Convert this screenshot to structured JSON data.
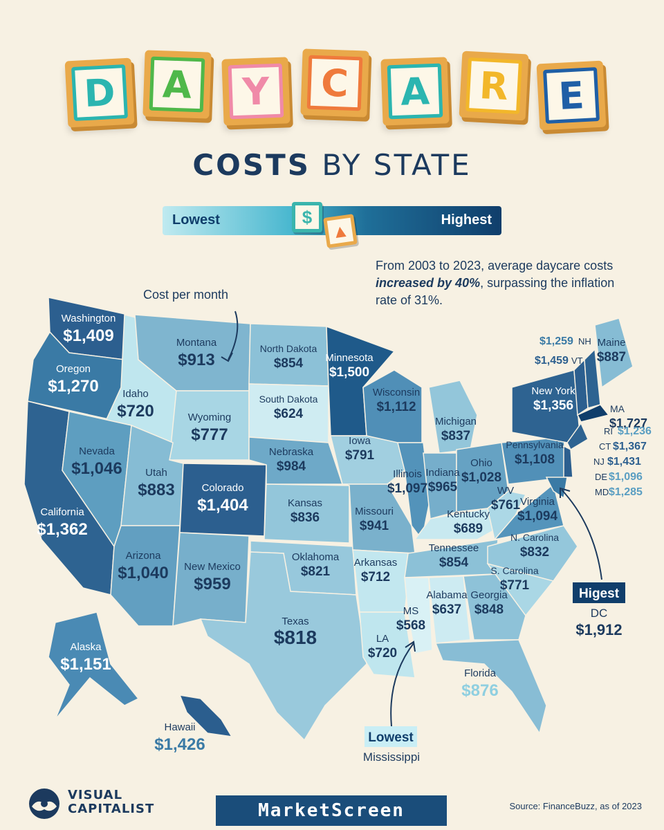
{
  "title": {
    "letters": [
      {
        "char": "D",
        "color": "#2bb5b0",
        "border": "#2bb5b0"
      },
      {
        "char": "A",
        "color": "#4fb84a",
        "border": "#4fb84a"
      },
      {
        "char": "Y",
        "color": "#f08aa8",
        "border": "#f08aa8"
      },
      {
        "char": "C",
        "color": "#ef7a3c",
        "border": "#ef7a3c"
      },
      {
        "char": "A",
        "color": "#2bb5b0",
        "border": "#2bb5b0"
      },
      {
        "char": "R",
        "color": "#f2b72a",
        "border": "#f2b72a"
      },
      {
        "char": "E",
        "color": "#1f5fa6",
        "border": "#1f5fa6"
      }
    ],
    "subtitle_bold": "COSTS",
    "subtitle_rest": " BY STATE"
  },
  "legend": {
    "low_label": "Lowest",
    "high_label": "Highest",
    "low_icon": "dollar-icon",
    "high_icon": "up-arrow-icon"
  },
  "note": {
    "part1": "From 2003 to 2023, average daycare costs ",
    "emphasis": "increased by 40%",
    "part2": ", surpassing the inflation rate of 31%."
  },
  "cost_label": "Cost per month",
  "states": [
    {
      "name": "Washington",
      "value": "$1,409",
      "color": "#2c5f8f"
    },
    {
      "name": "Oregon",
      "value": "$1,270",
      "color": "#3a7aa5"
    },
    {
      "name": "California",
      "value": "$1,362",
      "color": "#2e6391"
    },
    {
      "name": "Idaho",
      "value": "$720",
      "color": "#bfe6ee"
    },
    {
      "name": "Nevada",
      "value": "$1,046",
      "color": "#5e9ec0"
    },
    {
      "name": "Montana",
      "value": "$913",
      "color": "#7fb5cf"
    },
    {
      "name": "Wyoming",
      "value": "$777",
      "color": "#a8d6e4"
    },
    {
      "name": "Utah",
      "value": "$883",
      "color": "#86bcd4"
    },
    {
      "name": "Arizona",
      "value": "$1,040",
      "color": "#629fc1"
    },
    {
      "name": "Colorado",
      "value": "$1,404",
      "color": "#2c5f8f"
    },
    {
      "name": "New Mexico",
      "value": "$959",
      "color": "#77afcb"
    },
    {
      "name": "North Dakota",
      "value": "$854",
      "color": "#8cc1d7"
    },
    {
      "name": "South Dakota",
      "value": "$624",
      "color": "#cfecf2"
    },
    {
      "name": "Nebraska",
      "value": "$984",
      "color": "#6ea9c8"
    },
    {
      "name": "Kansas",
      "value": "$836",
      "color": "#93c6da"
    },
    {
      "name": "Oklahoma",
      "value": "$821",
      "color": "#97c8dc"
    },
    {
      "name": "Texas",
      "value": "$818",
      "color": "#99c9dc"
    },
    {
      "name": "Minnesota",
      "value": "$1,500",
      "color": "#1f5a8a"
    },
    {
      "name": "Iowa",
      "value": "$791",
      "color": "#a1cfe0"
    },
    {
      "name": "Missouri",
      "value": "$941",
      "color": "#7ab1cc"
    },
    {
      "name": "Arkansas",
      "value": "$712",
      "color": "#c2e7ef"
    },
    {
      "name": "LA",
      "value": "$720",
      "color": "#bfe6ee"
    },
    {
      "name": "Wisconsin",
      "value": "$1,112",
      "color": "#508fb7"
    },
    {
      "name": "Illinois",
      "value": "$1,097",
      "color": "#5393ba"
    },
    {
      "name": "Michigan",
      "value": "$837",
      "color": "#93c6da"
    },
    {
      "name": "Indiana",
      "value": "$965",
      "color": "#76aecb"
    },
    {
      "name": "Ohio",
      "value": "$1,028",
      "color": "#66a2c3"
    },
    {
      "name": "Kentucky",
      "value": "$689",
      "color": "#c8e9f0"
    },
    {
      "name": "Tennessee",
      "value": "$854",
      "color": "#8cc1d7"
    },
    {
      "name": "MS",
      "value": "$568",
      "color": "#d9f1f5"
    },
    {
      "name": "Alabama",
      "value": "$637",
      "color": "#cdebf2"
    },
    {
      "name": "Georgia",
      "value": "$848",
      "color": "#8ec2d8"
    },
    {
      "name": "Florida",
      "value": "$876",
      "color": "#88bdd5"
    },
    {
      "name": "S. Carolina",
      "value": "$771",
      "color": "#aad7e5"
    },
    {
      "name": "N. Carolina",
      "value": "$832",
      "color": "#94c7db"
    },
    {
      "name": "Virginia",
      "value": "$1,094",
      "color": "#5494bb"
    },
    {
      "name": "WV",
      "value": "$761",
      "color": "#acd8e6"
    },
    {
      "name": "Pennsylvania",
      "value": "$1,108",
      "color": "#5190b8"
    },
    {
      "name": "New York",
      "value": "$1,356",
      "color": "#2e6391"
    },
    {
      "name": "Maine",
      "value": "$887",
      "color": "#86bcd4"
    },
    {
      "name": "Alaska",
      "value": "$1,151",
      "color": "#4a8ab4"
    },
    {
      "name": "Hawaii",
      "value": "$1,426",
      "color": "#2b5e8e"
    }
  ],
  "northeast": [
    {
      "abbr": "NH",
      "value": "$1,259"
    },
    {
      "abbr": "VT",
      "value": "$1,459"
    },
    {
      "abbr": "MA",
      "value": "$1,727"
    },
    {
      "abbr": "RI",
      "value": "$1,236"
    },
    {
      "abbr": "CT",
      "value": "$1,367"
    },
    {
      "abbr": "NJ",
      "value": "$1,431"
    },
    {
      "abbr": "DE",
      "value": "$1,096"
    },
    {
      "abbr": "MD",
      "value": "$1,285"
    }
  ],
  "highest": {
    "tag": "Higest",
    "place": "DC",
    "value": "$1,912"
  },
  "lowest": {
    "tag": "Lowest",
    "place": "Mississippi"
  },
  "footer": {
    "logo_line1": "VISUAL",
    "logo_line2": "CAPITALIST",
    "brand": "MarketScreen",
    "source": "Source: FinanceBuzz, as of 2023"
  }
}
